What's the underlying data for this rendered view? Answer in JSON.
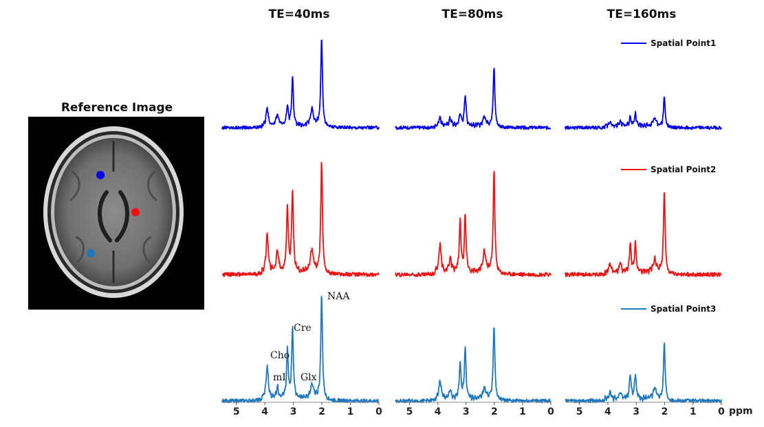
{
  "chart_data": {
    "type": "line",
    "reference_image": {
      "title": "Reference Image",
      "description_free_markers": [
        {
          "series": "Spatial Point1",
          "color": "#0000ee"
        },
        {
          "series": "Spatial Point2",
          "color": "#ee1111"
        },
        {
          "series": "Spatial Point3",
          "color": "#1f77c0"
        }
      ]
    },
    "columns": [
      {
        "title": "TE=40ms",
        "te": 40
      },
      {
        "title": "TE=80ms",
        "te": 80
      },
      {
        "title": "TE=160ms",
        "te": 160
      }
    ],
    "series": [
      {
        "name": "Spatial Point1",
        "color": "#0000ee",
        "legend": "Spatial Point1"
      },
      {
        "name": "Spatial Point2",
        "color": "#ee1111",
        "legend": "Spatial Point2"
      },
      {
        "name": "Spatial Point3",
        "color": "#1f77c0",
        "legend": "Spatial Point3"
      }
    ],
    "xaxis": {
      "label": "ppm",
      "range": [
        5.5,
        0
      ],
      "reversed": true,
      "ticks": [
        5,
        4,
        3,
        2,
        1,
        0
      ],
      "tick_labels": [
        "5",
        "4",
        "3",
        "2",
        "1",
        "0"
      ]
    },
    "peaks_ppm": {
      "NAA": 2.01,
      "Glx": 2.35,
      "Cre": 3.03,
      "Cho": 3.21,
      "mI": 3.56,
      "mI_b": 3.92
    },
    "peak_amplitudes": {
      "Spatial Point1": [
        {
          "NAA": 1.0,
          "Glx": 0.18,
          "Cre": 0.52,
          "Cho": 0.22,
          "mI": 0.12,
          "mI_b": 0.2
        },
        {
          "NAA": 0.66,
          "Glx": 0.1,
          "Cre": 0.35,
          "Cho": 0.14,
          "mI": 0.08,
          "mI_b": 0.1
        },
        {
          "NAA": 0.34,
          "Glx": 0.08,
          "Cre": 0.14,
          "Cho": 0.1,
          "mI": 0.05,
          "mI_b": 0.04
        }
      ],
      "Spatial Point2": [
        {
          "NAA": 1.0,
          "Glx": 0.2,
          "Cre": 0.72,
          "Cho": 0.58,
          "mI": 0.18,
          "mI_b": 0.34
        },
        {
          "NAA": 0.92,
          "Glx": 0.18,
          "Cre": 0.5,
          "Cho": 0.45,
          "mI": 0.12,
          "mI_b": 0.25
        },
        {
          "NAA": 0.74,
          "Glx": 0.12,
          "Cre": 0.25,
          "Cho": 0.25,
          "mI": 0.08,
          "mI_b": 0.08
        }
      ],
      "Spatial Point3": [
        {
          "NAA": 1.0,
          "Glx": 0.14,
          "Cre": 0.66,
          "Cho": 0.45,
          "mI": 0.1,
          "mI_b": 0.3
        },
        {
          "NAA": 0.72,
          "Glx": 0.1,
          "Cre": 0.48,
          "Cho": 0.32,
          "mI": 0.07,
          "mI_b": 0.18
        },
        {
          "NAA": 0.55,
          "Glx": 0.1,
          "Cre": 0.22,
          "Cho": 0.22,
          "mI": 0.06,
          "mI_b": 0.06
        }
      ]
    },
    "annotations": [
      {
        "text": "NAA",
        "ppm": 2.01,
        "series": "Spatial Point3",
        "column": 0
      },
      {
        "text": "Cre",
        "ppm": 3.03,
        "series": "Spatial Point3",
        "column": 0
      },
      {
        "text": "Cho",
        "ppm": 3.21,
        "series": "Spatial Point3",
        "column": 0
      },
      {
        "text": "mI",
        "ppm": 3.56,
        "series": "Spatial Point3",
        "column": 0
      },
      {
        "text": "Glx",
        "ppm": 2.35,
        "series": "Spatial Point3",
        "column": 0
      }
    ]
  }
}
